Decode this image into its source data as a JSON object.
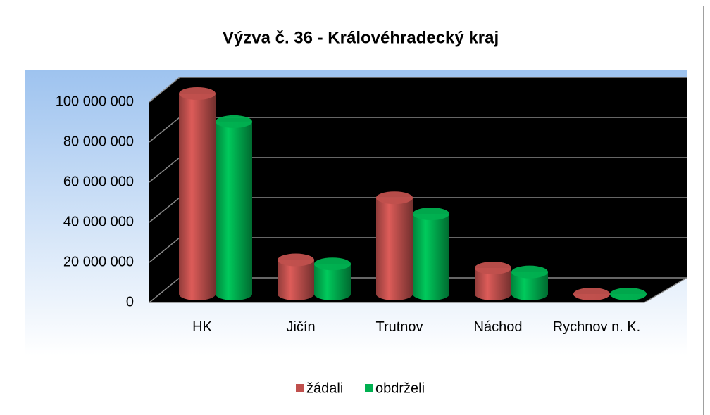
{
  "chart_data": {
    "type": "bar3d",
    "title": "Výzva č. 36 - Královéhradecký kraj",
    "categories": [
      "HK",
      "Jičín",
      "Trutnov",
      "Náchod",
      "Rychnov n. K."
    ],
    "series": [
      {
        "name": "žádali",
        "color": "#c0504d",
        "values": [
          100000000,
          17000000,
          48000000,
          13000000,
          0
        ]
      },
      {
        "name": "obdrželi",
        "color": "#00b050",
        "values": [
          86000000,
          15000000,
          40000000,
          11000000,
          0
        ]
      }
    ],
    "ylim": [
      0,
      100000000
    ],
    "yticks": [
      0,
      {
        "value": 20000000,
        "label": "20 000 000"
      },
      {
        "value": 40000000,
        "label": "40 000 000"
      },
      {
        "value": 60000000,
        "label": "60 000 000"
      },
      {
        "value": 80000000,
        "label": "80 000 000"
      },
      {
        "value": 100000000,
        "label": "100 000 000"
      }
    ],
    "grid": true,
    "legend": "bottom"
  }
}
